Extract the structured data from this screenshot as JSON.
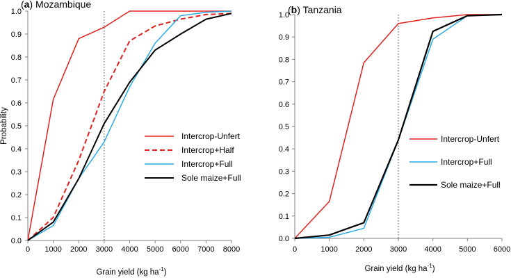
{
  "chart_data": [
    {
      "type": "line",
      "panel_letter": "a",
      "title": "Mozambique",
      "xlabel": "Grain yield (kg ha",
      "xlabel_sup": "-1",
      "xlabel_close": ")",
      "ylabel": "Probability",
      "xlim": [
        0,
        8000
      ],
      "ylim": [
        0,
        1
      ],
      "xticks": [
        0,
        1000,
        2000,
        3000,
        4000,
        5000,
        6000,
        7000,
        8000
      ],
      "xtick_labels": [
        "0",
        "1000",
        "2000",
        "3000",
        "4000",
        "5000",
        "6000",
        "7000",
        "8000"
      ],
      "yticks": [
        0,
        0.1,
        0.2,
        0.3,
        0.4,
        0.5,
        0.6,
        0.7,
        0.8,
        0.9,
        1.0
      ],
      "ytick_labels": [
        "0.0",
        "0.1",
        "0.2",
        "0.3",
        "0.4",
        "0.5",
        "0.6",
        "0.7",
        "0.8",
        "0.9",
        "1.0"
      ],
      "reference_line_x": 3000,
      "grid": false,
      "legend_position": "lower-right",
      "series": [
        {
          "name": "Intercrop-Unfert",
          "color": "#e0201b",
          "dash": "solid",
          "width": 1.5,
          "x": [
            0,
            1000,
            2000,
            3000,
            4000,
            5000,
            6000,
            7000,
            8000
          ],
          "values": [
            0.0,
            0.615,
            0.88,
            0.93,
            1.0,
            1.0,
            1.0,
            1.0,
            1.0
          ]
        },
        {
          "name": "Intercrop+Half",
          "color": "#e0201b",
          "dash": "dashed",
          "width": 2,
          "x": [
            0,
            1000,
            2000,
            3000,
            4000,
            5000,
            6000,
            7000,
            8000
          ],
          "values": [
            0.0,
            0.1,
            0.35,
            0.65,
            0.87,
            0.935,
            0.965,
            0.985,
            0.99
          ]
        },
        {
          "name": "Intercrop+Full",
          "color": "#29abe2",
          "dash": "solid",
          "width": 1.5,
          "x": [
            0,
            1000,
            2000,
            3000,
            4000,
            5000,
            6000,
            7000,
            8000
          ],
          "values": [
            0.0,
            0.065,
            0.27,
            0.43,
            0.67,
            0.86,
            0.98,
            0.995,
            1.0
          ]
        },
        {
          "name": "Sole maize+Full",
          "color": "#000000",
          "dash": "solid",
          "width": 2,
          "x": [
            0,
            1000,
            2000,
            3000,
            4000,
            5000,
            6000,
            7000,
            8000
          ],
          "values": [
            0.0,
            0.08,
            0.27,
            0.51,
            0.69,
            0.83,
            0.9,
            0.965,
            0.99
          ]
        }
      ]
    },
    {
      "type": "line",
      "panel_letter": "b",
      "title": "Tanzania",
      "xlabel": "Grain yield (kg ha",
      "xlabel_sup": "-1",
      "xlabel_close": ")",
      "xlim": [
        0,
        6000
      ],
      "ylim": [
        0,
        1
      ],
      "xticks": [
        0,
        1000,
        2000,
        3000,
        4000,
        5000,
        6000
      ],
      "xtick_labels": [
        "0",
        "1000",
        "2000",
        "3000",
        "4000",
        "5000",
        "6000"
      ],
      "yticks": [
        0,
        0.1,
        0.2,
        0.3,
        0.4,
        0.5,
        0.6,
        0.7,
        0.8,
        0.9,
        1.0
      ],
      "ytick_labels": [
        "0.0",
        "0.1",
        "0.2",
        "0.3",
        "0.4",
        "0.5",
        "0.6",
        "0.7",
        "0.8",
        "0.9",
        "1.0"
      ],
      "reference_line_x": 3000,
      "grid": false,
      "legend_position": "lower-right",
      "series": [
        {
          "name": "Intercrop-Unfert",
          "color": "#e0201b",
          "dash": "solid",
          "width": 1.5,
          "x": [
            0,
            1000,
            2000,
            3000,
            4000,
            5000,
            6000
          ],
          "values": [
            0.0,
            0.165,
            0.785,
            0.96,
            0.985,
            1.0,
            1.0
          ]
        },
        {
          "name": "Intercrop+Full",
          "color": "#29abe2",
          "dash": "solid",
          "width": 1.5,
          "x": [
            0,
            1000,
            2000,
            3000,
            4000,
            5000,
            6000
          ],
          "values": [
            0.0,
            0.005,
            0.045,
            0.44,
            0.89,
            0.995,
            1.0
          ]
        },
        {
          "name": "Sole maize+Full",
          "color": "#000000",
          "dash": "solid",
          "width": 2.2,
          "x": [
            0,
            1000,
            2000,
            3000,
            4000,
            5000,
            6000
          ],
          "values": [
            0.0,
            0.015,
            0.07,
            0.44,
            0.925,
            0.995,
            1.0
          ]
        }
      ]
    }
  ]
}
